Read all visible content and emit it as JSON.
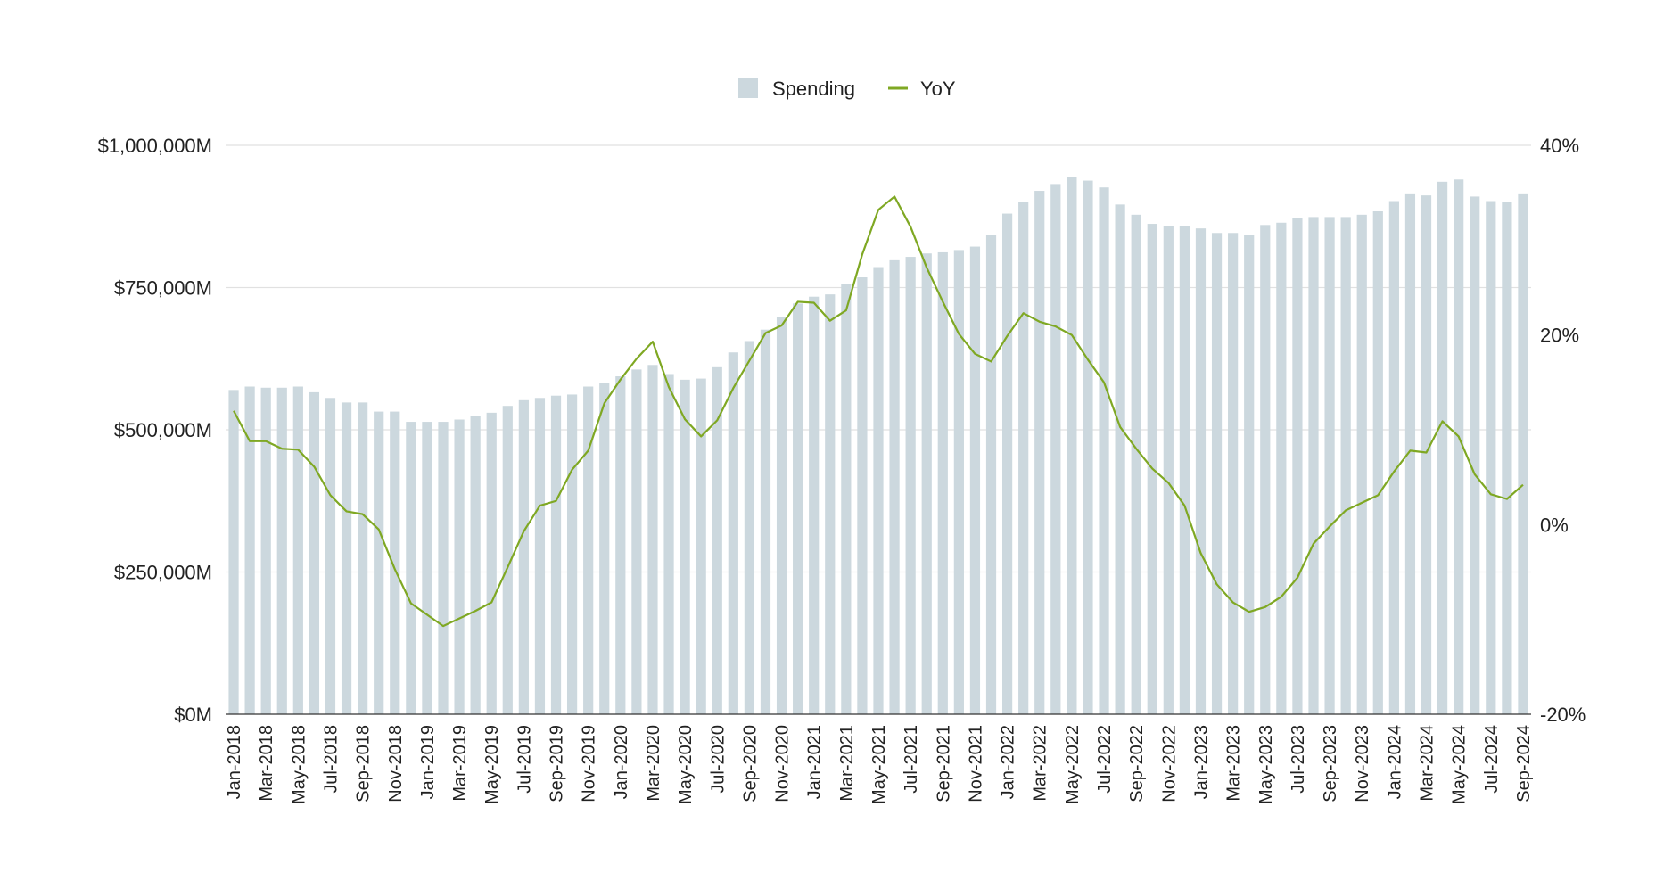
{
  "chart_data": {
    "type": "bar",
    "title": "",
    "xlabel": "",
    "ylabel": "",
    "legend_position": "top",
    "grid": true,
    "colors": {
      "bar": "#ccd8de",
      "line": "#7fa823",
      "grid": "#e1e1e1",
      "axis": "#333333"
    },
    "legend": [
      {
        "name": "Spending",
        "kind": "bar"
      },
      {
        "name": "YoY",
        "kind": "line"
      }
    ],
    "categories": [
      "Jan-2018",
      "Feb-2018",
      "Mar-2018",
      "Apr-2018",
      "May-2018",
      "Jun-2018",
      "Jul-2018",
      "Aug-2018",
      "Sep-2018",
      "Oct-2018",
      "Nov-2018",
      "Dec-2018",
      "Jan-2019",
      "Feb-2019",
      "Mar-2019",
      "Apr-2019",
      "May-2019",
      "Jun-2019",
      "Jul-2019",
      "Aug-2019",
      "Sep-2019",
      "Oct-2019",
      "Nov-2019",
      "Dec-2019",
      "Jan-2020",
      "Feb-2020",
      "Mar-2020",
      "Apr-2020",
      "May-2020",
      "Jun-2020",
      "Jul-2020",
      "Aug-2020",
      "Sep-2020",
      "Oct-2020",
      "Nov-2020",
      "Dec-2020",
      "Jan-2021",
      "Feb-2021",
      "Mar-2021",
      "Apr-2021",
      "May-2021",
      "Jun-2021",
      "Jul-2021",
      "Aug-2021",
      "Sep-2021",
      "Oct-2021",
      "Nov-2021",
      "Dec-2021",
      "Jan-2022",
      "Feb-2022",
      "Mar-2022",
      "Apr-2022",
      "May-2022",
      "Jun-2022",
      "Jul-2022",
      "Aug-2022",
      "Sep-2022",
      "Oct-2022",
      "Nov-2022",
      "Dec-2022",
      "Jan-2023",
      "Feb-2023",
      "Mar-2023",
      "Apr-2023",
      "May-2023",
      "Jun-2023",
      "Jul-2023",
      "Aug-2023",
      "Sep-2023",
      "Oct-2023",
      "Nov-2023",
      "Dec-2023",
      "Jan-2024",
      "Feb-2024",
      "Mar-2024",
      "Apr-2024",
      "May-2024",
      "Jun-2024",
      "Jul-2024",
      "Aug-2024",
      "Sep-2024"
    ],
    "x_tick_labels": [
      "Jan-2018",
      "Mar-2018",
      "May-2018",
      "Jul-2018",
      "Sep-2018",
      "Nov-2018",
      "Jan-2019",
      "Mar-2019",
      "May-2019",
      "Jul-2019",
      "Sep-2019",
      "Nov-2019",
      "Jan-2020",
      "Mar-2020",
      "May-2020",
      "Jul-2020",
      "Sep-2020",
      "Nov-2020",
      "Jan-2021",
      "Mar-2021",
      "May-2021",
      "Jul-2021",
      "Sep-2021",
      "Nov-2021",
      "Jan-2022",
      "Mar-2022",
      "May-2022",
      "Jul-2022",
      "Sep-2022",
      "Nov-2022",
      "Jan-2023",
      "Mar-2023",
      "May-2023",
      "Jul-2023",
      "Sep-2023",
      "Nov-2023",
      "Jan-2024",
      "Mar-2024",
      "May-2024",
      "Jul-2024",
      "Sep-2024"
    ],
    "series": [
      {
        "name": "Spending",
        "type": "bar",
        "axis": "left",
        "values": [
          570000,
          576000,
          574000,
          574000,
          576000,
          566000,
          556000,
          548000,
          548000,
          532000,
          532000,
          514000,
          514000,
          514000,
          518000,
          524000,
          530000,
          542000,
          552000,
          556000,
          560000,
          562000,
          576000,
          582000,
          594000,
          606000,
          614000,
          598000,
          588000,
          590000,
          610000,
          636000,
          656000,
          676000,
          698000,
          722000,
          734000,
          738000,
          756000,
          768000,
          786000,
          798000,
          804000,
          810000,
          812000,
          816000,
          822000,
          842000,
          880000,
          900000,
          920000,
          932000,
          944000,
          938000,
          926000,
          896000,
          878000,
          862000,
          858000,
          858000,
          854000,
          846000,
          846000,
          842000,
          860000,
          864000,
          872000,
          874000,
          874000,
          874000,
          878000,
          884000,
          902000,
          914000,
          912000,
          936000,
          940000,
          910000,
          902000,
          900000,
          914000
        ]
      },
      {
        "name": "YoY",
        "type": "line",
        "axis": "right",
        "values": [
          12.0,
          8.8,
          8.8,
          8.0,
          7.9,
          6.1,
          3.1,
          1.4,
          1.1,
          -0.5,
          -4.7,
          -8.3,
          -9.5,
          -10.7,
          -9.9,
          -9.1,
          -8.2,
          -4.5,
          -0.7,
          2.0,
          2.5,
          5.8,
          7.8,
          12.8,
          15.3,
          17.5,
          19.3,
          14.5,
          11.1,
          9.3,
          11.0,
          14.4,
          17.3,
          20.2,
          21.0,
          23.5,
          23.4,
          21.5,
          22.6,
          28.5,
          33.2,
          34.6,
          31.4,
          27.1,
          23.5,
          20.1,
          18.0,
          17.2,
          19.9,
          22.3,
          21.4,
          20.9,
          20.0,
          17.4,
          15.0,
          10.3,
          8.0,
          5.9,
          4.4,
          2.0,
          -3.0,
          -6.3,
          -8.2,
          -9.2,
          -8.7,
          -7.6,
          -5.6,
          -2.0,
          -0.2,
          1.5,
          2.3,
          3.1,
          5.6,
          7.8,
          7.6,
          10.9,
          9.3,
          5.3,
          3.2,
          2.7,
          4.2
        ]
      }
    ],
    "y_left": {
      "min": 0,
      "max": 1000000,
      "ticks": [
        0,
        250000,
        500000,
        750000,
        1000000
      ],
      "tick_labels": [
        "$0M",
        "$250,000M",
        "$500,000M",
        "$750,000M",
        "$1,000,000M"
      ]
    },
    "y_right": {
      "min": -20,
      "max": 40,
      "ticks": [
        -20,
        0,
        20,
        40
      ],
      "tick_labels": [
        "-20%",
        "0%",
        "20%",
        "40%"
      ]
    }
  }
}
